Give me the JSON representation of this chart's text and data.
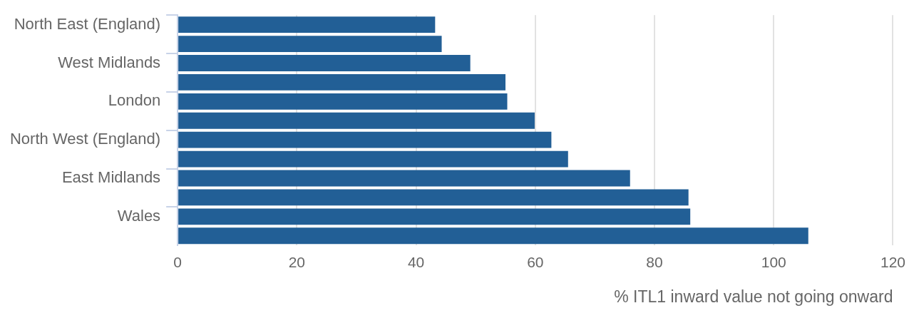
{
  "chart_data": {
    "type": "bar",
    "orientation": "horizontal",
    "xlabel": "% ITL1 inward value not going onward",
    "categories": [
      "North East (England)",
      null,
      "West Midlands",
      null,
      "London",
      null,
      "North West (England)",
      null,
      "East Midlands",
      null,
      "Wales",
      null
    ],
    "values": [
      43.2,
      44.3,
      49.1,
      55.0,
      55.3,
      59.9,
      62.7,
      65.5,
      75.9,
      85.7,
      86.0,
      105.8
    ],
    "color": "#225f96",
    "xlim": [
      0,
      120
    ],
    "xticks": [
      0,
      20,
      40,
      60,
      80,
      100,
      120
    ],
    "grid": "x",
    "legend": false
  }
}
